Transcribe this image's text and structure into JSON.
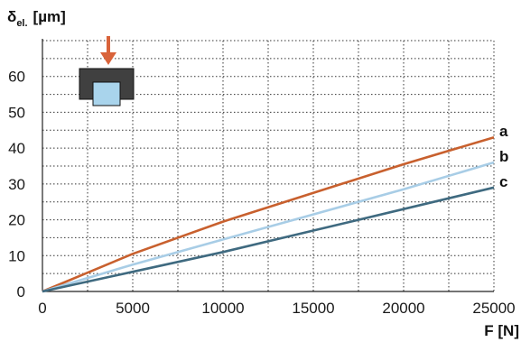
{
  "chart_data": {
    "type": "line",
    "title": "",
    "xlabel": "F [N]",
    "ylabel_main": "δ",
    "ylabel_sub": "el.",
    "ylabel_unit": "[µm]",
    "xlim": [
      0,
      25000
    ],
    "ylim": [
      0,
      70
    ],
    "xticks": [
      0,
      5000,
      10000,
      15000,
      20000,
      25000
    ],
    "yticks": [
      0,
      10,
      20,
      30,
      40,
      50,
      60
    ],
    "grid": true,
    "series": [
      {
        "name": "a",
        "color": "#c8602e",
        "x": [
          0,
          5000,
          10000,
          15000,
          20000,
          25000
        ],
        "y": [
          0,
          10.5,
          19.5,
          27.5,
          35.5,
          43
        ]
      },
      {
        "name": "b",
        "color": "#a8cde6",
        "x": [
          0,
          5000,
          10000,
          15000,
          20000,
          25000
        ],
        "y": [
          0,
          7.5,
          14.5,
          21.5,
          28.5,
          36
        ]
      },
      {
        "name": "c",
        "color": "#3f6a80",
        "x": [
          0,
          5000,
          10000,
          15000,
          20000,
          25000
        ],
        "y": [
          0,
          5.5,
          11,
          17,
          23,
          29
        ]
      }
    ],
    "inset_icon": "force-on-block-icon",
    "colors": {
      "arrow": "#d9633a",
      "block": "#404040",
      "insert": "#a9d4ec"
    }
  }
}
